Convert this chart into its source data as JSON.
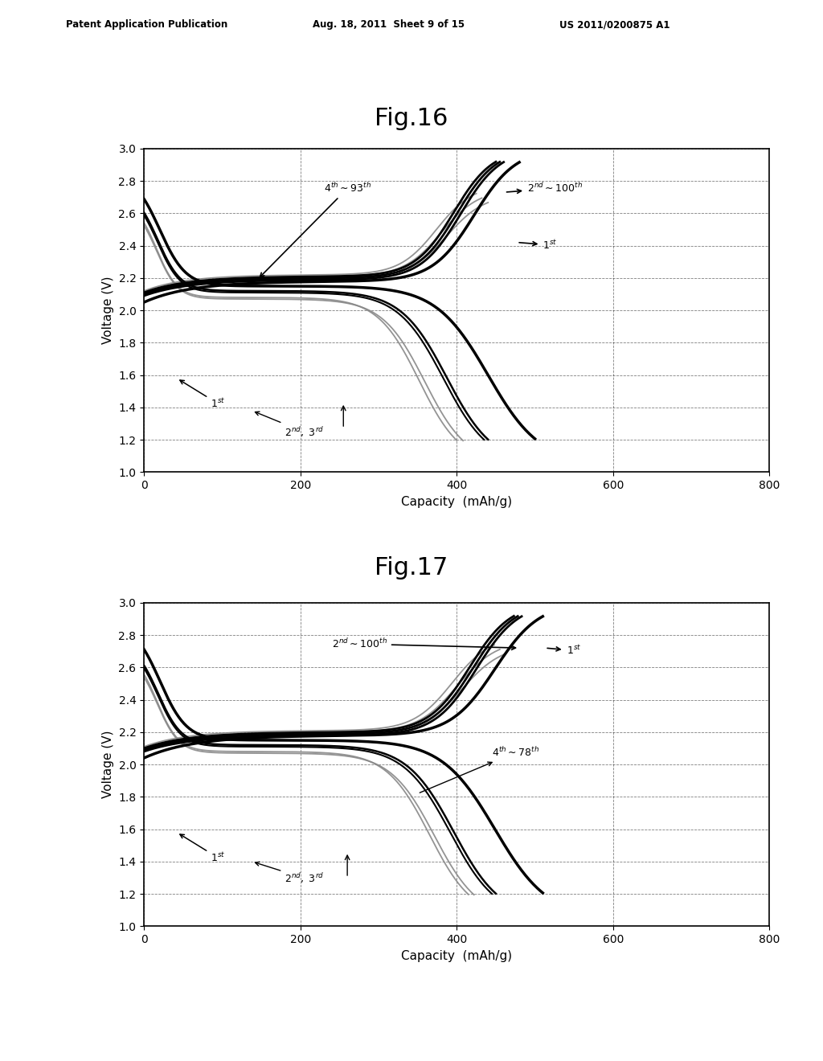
{
  "fig_width": 10.24,
  "fig_height": 13.2,
  "background_color": "#ffffff",
  "header_left": "Patent Application Publication",
  "header_mid": "Aug. 18, 2011  Sheet 9 of 15",
  "header_right": "US 2011/0200875 A1",
  "fig16_title": "Fig.16",
  "fig17_title": "Fig.17",
  "xlabel": "Capacity  (mAh/g)",
  "ylabel": "Voltage (V)",
  "xlim": [
    0,
    800
  ],
  "ylim": [
    1.0,
    3.0
  ],
  "xticks": [
    0,
    200,
    400,
    600,
    800
  ],
  "yticks": [
    1.0,
    1.2,
    1.4,
    1.6,
    1.8,
    2.0,
    2.2,
    2.4,
    2.6,
    2.8,
    3.0
  ]
}
